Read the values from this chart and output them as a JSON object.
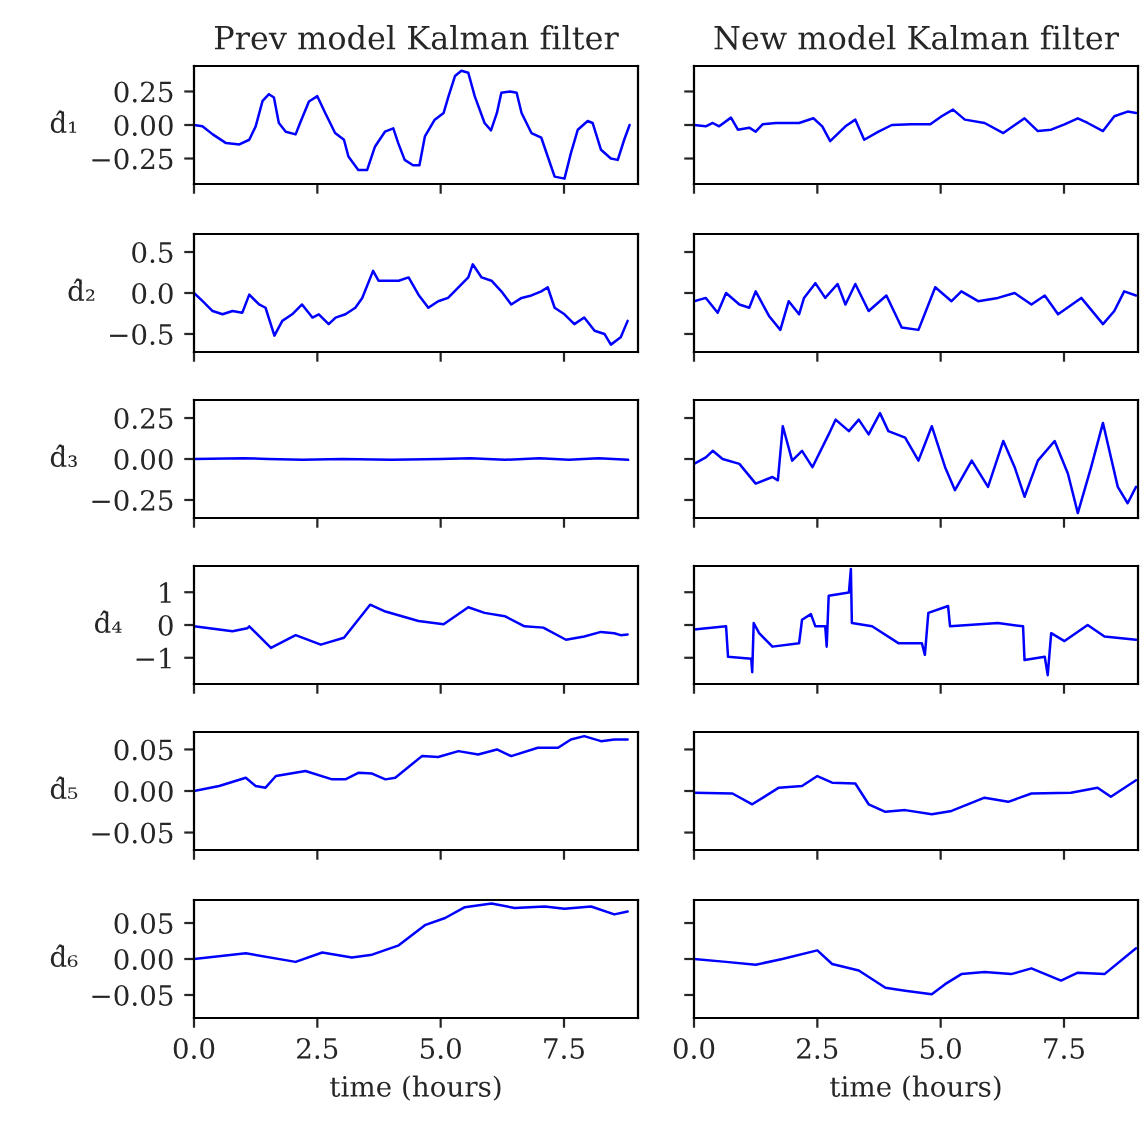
{
  "chart_data": [
    {
      "type": "line",
      "title": "Prev model Kalman filter",
      "ylabel": "d̂₁",
      "xlim": [
        0,
        9
      ],
      "xticks": [
        {
          "value": 0,
          "label": null
        },
        {
          "value": 2.5,
          "label": null
        },
        {
          "value": 5,
          "label": null
        },
        {
          "value": 7.5,
          "label": null
        }
      ],
      "ylim": [
        -0.44,
        0.44
      ],
      "yticks": [
        {
          "value": -0.25,
          "label": "−0.25"
        },
        {
          "value": 0,
          "label": "0.00"
        },
        {
          "value": 0.25,
          "label": "0.25"
        }
      ],
      "tick_labels": "y",
      "series": [
        {
          "color": "#0000ff",
          "x": [
            0,
            0.17,
            0.38,
            0.65,
            0.92,
            1.12,
            1.25,
            1.39,
            1.52,
            1.62,
            1.72,
            1.86,
            2.06,
            2.15,
            2.33,
            2.5,
            2.66,
            2.86,
            3.04,
            3.13,
            3.33,
            3.51,
            3.67,
            3.87,
            4.04,
            4.14,
            4.27,
            4.44,
            4.57,
            4.68,
            4.88,
            5.06,
            5.16,
            5.29,
            5.42,
            5.56,
            5.69,
            5.89,
            6.02,
            6.14,
            6.23,
            6.41,
            6.54,
            6.64,
            6.84,
            7.04,
            7.17,
            7.31,
            7.51,
            7.64,
            7.78,
            7.98,
            8.08,
            8.25,
            8.45,
            8.59,
            8.72,
            8.83
          ],
          "values": [
            0,
            -0.01,
            -0.07,
            -0.135,
            -0.145,
            -0.11,
            -0.01,
            0.18,
            0.23,
            0.205,
            0.015,
            -0.05,
            -0.07,
            0.015,
            0.175,
            0.215,
            0.09,
            -0.06,
            -0.11,
            -0.235,
            -0.335,
            -0.335,
            -0.16,
            -0.05,
            -0.025,
            -0.135,
            -0.26,
            -0.3,
            -0.3,
            -0.085,
            0.04,
            0.09,
            0.215,
            0.365,
            0.405,
            0.39,
            0.215,
            0.015,
            -0.04,
            0.09,
            0.24,
            0.25,
            0.24,
            0.09,
            -0.06,
            -0.095,
            -0.235,
            -0.385,
            -0.4,
            -0.21,
            -0.035,
            0.03,
            0.015,
            -0.185,
            -0.25,
            -0.26,
            -0.11,
            0
          ]
        }
      ]
    },
    {
      "type": "line",
      "title": "New model Kalman filter",
      "xlim": [
        0,
        9
      ],
      "xticks": [
        {
          "value": 0,
          "label": null
        },
        {
          "value": 2.5,
          "label": null
        },
        {
          "value": 5,
          "label": null
        },
        {
          "value": 7.5,
          "label": null
        }
      ],
      "ylim": [
        -0.44,
        0.44
      ],
      "yticks": [
        {
          "value": -0.25,
          "label": null
        },
        {
          "value": 0,
          "label": null
        },
        {
          "value": 0.25,
          "label": null
        }
      ],
      "tick_labels": false,
      "series": [
        {
          "color": "#0000ff",
          "x": [
            0,
            0.24,
            0.38,
            0.51,
            0.75,
            0.89,
            1.12,
            1.25,
            1.39,
            1.66,
            2.13,
            2.42,
            2.6,
            2.76,
            3.07,
            3.27,
            3.45,
            3.74,
            4.01,
            4.41,
            4.79,
            5.02,
            5.25,
            5.49,
            5.89,
            6.27,
            6.7,
            6.97,
            7.24,
            7.51,
            7.78,
            7.98,
            8.29,
            8.52,
            8.79,
            8.96
          ],
          "values": [
            0,
            -0.01,
            0.015,
            -0.01,
            0.055,
            -0.035,
            -0.02,
            -0.05,
            0.005,
            0.015,
            0.015,
            0.05,
            -0.01,
            -0.12,
            -0.01,
            0.04,
            -0.11,
            -0.05,
            0,
            0.005,
            0.005,
            0.065,
            0.115,
            0.04,
            0.015,
            -0.06,
            0.05,
            -0.045,
            -0.035,
            0.005,
            0.05,
            0.015,
            -0.045,
            0.065,
            0.1,
            0.09
          ]
        }
      ]
    },
    {
      "type": "line",
      "ylabel": "d̂₂",
      "xlim": [
        0,
        9
      ],
      "xticks": [
        {
          "value": 0,
          "label": null
        },
        {
          "value": 2.5,
          "label": null
        },
        {
          "value": 5,
          "label": null
        },
        {
          "value": 7.5,
          "label": null
        }
      ],
      "ylim": [
        -0.72,
        0.72
      ],
      "yticks": [
        {
          "value": -0.5,
          "label": "−0.5"
        },
        {
          "value": 0,
          "label": "0.0"
        },
        {
          "value": 0.5,
          "label": "0.5"
        }
      ],
      "tick_labels": "y",
      "series": [
        {
          "color": "#0000ff",
          "x": [
            0,
            0.175,
            0.377,
            0.579,
            0.78,
            0.98,
            1.12,
            1.32,
            1.45,
            1.63,
            1.79,
            1.99,
            2.19,
            2.4,
            2.53,
            2.73,
            2.87,
            3.07,
            3.27,
            3.41,
            3.63,
            3.74,
            3.94,
            4.15,
            4.35,
            4.55,
            4.75,
            4.95,
            5.15,
            5.36,
            5.56,
            5.65,
            5.83,
            6.03,
            6.23,
            6.43,
            6.64,
            6.84,
            7.04,
            7.17,
            7.31,
            7.51,
            7.71,
            7.91,
            8.12,
            8.32,
            8.45,
            8.65,
            8.79
          ],
          "values": [
            0,
            -0.1,
            -0.22,
            -0.26,
            -0.22,
            -0.24,
            -0.02,
            -0.14,
            -0.18,
            -0.52,
            -0.34,
            -0.26,
            -0.14,
            -0.3,
            -0.26,
            -0.38,
            -0.3,
            -0.26,
            -0.18,
            -0.06,
            0.27,
            0.15,
            0.15,
            0.15,
            0.19,
            -0.02,
            -0.18,
            -0.1,
            -0.06,
            0.07,
            0.19,
            0.35,
            0.19,
            0.15,
            0.02,
            -0.14,
            -0.06,
            -0.03,
            0.02,
            0.07,
            -0.18,
            -0.26,
            -0.38,
            -0.3,
            -0.46,
            -0.5,
            -0.63,
            -0.54,
            -0.34
          ]
        }
      ]
    },
    {
      "type": "line",
      "xlim": [
        0,
        9
      ],
      "xticks": [
        {
          "value": 0,
          "label": null
        },
        {
          "value": 2.5,
          "label": null
        },
        {
          "value": 5,
          "label": null
        },
        {
          "value": 7.5,
          "label": null
        }
      ],
      "ylim": [
        -0.72,
        0.72
      ],
      "yticks": [
        {
          "value": -0.5,
          "label": null
        },
        {
          "value": 0,
          "label": null
        },
        {
          "value": 0.5,
          "label": null
        }
      ],
      "tick_labels": false,
      "series": [
        {
          "color": "#0000ff",
          "x": [
            0,
            0.24,
            0.48,
            0.65,
            0.92,
            1.12,
            1.25,
            1.52,
            1.75,
            1.92,
            2.13,
            2.23,
            2.46,
            2.66,
            2.91,
            3.07,
            3.27,
            3.54,
            3.9,
            4.21,
            4.55,
            4.89,
            5.22,
            5.42,
            5.76,
            6.16,
            6.5,
            6.84,
            7.11,
            7.38,
            7.85,
            8.29,
            8.52,
            8.72,
            8.96
          ],
          "values": [
            -0.1,
            -0.06,
            -0.24,
            0,
            -0.14,
            -0.18,
            0.02,
            -0.28,
            -0.45,
            -0.1,
            -0.26,
            -0.06,
            0.12,
            -0.06,
            0.11,
            -0.14,
            0.11,
            -0.22,
            -0.03,
            -0.42,
            -0.45,
            0.07,
            -0.1,
            0.02,
            -0.1,
            -0.06,
            0,
            -0.14,
            -0.03,
            -0.26,
            -0.06,
            -0.38,
            -0.22,
            0.02,
            -0.03
          ]
        }
      ]
    },
    {
      "type": "line",
      "ylabel": "d̂₃",
      "xlim": [
        0,
        9
      ],
      "xticks": [
        {
          "value": 0,
          "label": null
        },
        {
          "value": 2.5,
          "label": null
        },
        {
          "value": 5,
          "label": null
        },
        {
          "value": 7.5,
          "label": null
        }
      ],
      "ylim": [
        -0.36,
        0.36
      ],
      "yticks": [
        {
          "value": -0.25,
          "label": "−0.25"
        },
        {
          "value": 0,
          "label": "0.00"
        },
        {
          "value": 0.25,
          "label": "0.25"
        }
      ],
      "tick_labels": "y",
      "series": [
        {
          "color": "#0000ff",
          "x": [
            0,
            1,
            1.5,
            2.2,
            3,
            4,
            5,
            5.6,
            6.3,
            7,
            7.6,
            8.2,
            8.8
          ],
          "values": [
            0,
            0.005,
            0,
            -0.005,
            0,
            -0.005,
            0,
            0.005,
            -0.005,
            0.005,
            -0.005,
            0.005,
            -0.005
          ]
        }
      ]
    },
    {
      "type": "line",
      "xlim": [
        0,
        9
      ],
      "xticks": [
        {
          "value": 0,
          "label": null
        },
        {
          "value": 2.5,
          "label": null
        },
        {
          "value": 5,
          "label": null
        },
        {
          "value": 7.5,
          "label": null
        }
      ],
      "ylim": [
        -0.36,
        0.36
      ],
      "yticks": [
        {
          "value": -0.25,
          "label": null
        },
        {
          "value": 0,
          "label": null
        },
        {
          "value": 0.25,
          "label": null
        }
      ],
      "tick_labels": false,
      "series": [
        {
          "color": "#0000ff",
          "x": [
            0,
            0.24,
            0.38,
            0.58,
            0.92,
            1.25,
            1.59,
            1.7,
            1.8,
            1.99,
            2.19,
            2.4,
            2.73,
            2.87,
            3.14,
            3.34,
            3.54,
            3.77,
            3.94,
            4.28,
            4.55,
            4.82,
            5.09,
            5.29,
            5.63,
            5.96,
            6.27,
            6.5,
            6.7,
            6.97,
            7.31,
            7.58,
            7.78,
            8.05,
            8.29,
            8.59,
            8.79,
            8.96
          ],
          "values": [
            -0.03,
            0.01,
            0.05,
            0,
            -0.03,
            -0.15,
            -0.11,
            -0.13,
            0.2,
            -0.01,
            0.05,
            -0.05,
            0.15,
            0.24,
            0.17,
            0.24,
            0.15,
            0.28,
            0.17,
            0.13,
            -0.01,
            0.2,
            -0.05,
            -0.19,
            -0.01,
            -0.17,
            0.11,
            -0.05,
            -0.23,
            -0.01,
            0.11,
            -0.09,
            -0.33,
            -0.05,
            0.22,
            -0.17,
            -0.27,
            -0.17
          ]
        }
      ]
    },
    {
      "type": "line",
      "ylabel": "d̂₄",
      "xlim": [
        0,
        9
      ],
      "xticks": [
        {
          "value": 0,
          "label": null
        },
        {
          "value": 2.5,
          "label": null
        },
        {
          "value": 5,
          "label": null
        },
        {
          "value": 7.5,
          "label": null
        }
      ],
      "ylim": [
        -1.8,
        1.8
      ],
      "yticks": [
        {
          "value": -1,
          "label": "−1"
        },
        {
          "value": 0,
          "label": "0"
        },
        {
          "value": 1,
          "label": "1"
        }
      ],
      "tick_labels": "y",
      "series": [
        {
          "color": "#0000ff",
          "x": [
            0,
            0.51,
            0.78,
            1.08,
            1.12,
            1.56,
            2.06,
            2.57,
            3.04,
            3.57,
            3.88,
            4.55,
            5.06,
            5.56,
            5.89,
            6.3,
            6.7,
            7.08,
            7.54,
            7.91,
            8.25,
            8.52,
            8.65,
            8.79
          ],
          "values": [
            -0.04,
            -0.14,
            -0.19,
            -0.1,
            -0.04,
            -0.7,
            -0.31,
            -0.6,
            -0.39,
            0.62,
            0.41,
            0.12,
            0.02,
            0.54,
            0.37,
            0.27,
            -0.04,
            -0.08,
            -0.45,
            -0.35,
            -0.21,
            -0.25,
            -0.31,
            -0.29
          ]
        }
      ]
    },
    {
      "type": "line",
      "xlim": [
        0,
        9
      ],
      "xticks": [
        {
          "value": 0,
          "label": null
        },
        {
          "value": 2.5,
          "label": null
        },
        {
          "value": 5,
          "label": null
        },
        {
          "value": 7.5,
          "label": null
        }
      ],
      "ylim": [
        -1.8,
        1.8
      ],
      "yticks": [
        {
          "value": -1,
          "label": null
        },
        {
          "value": 0,
          "label": null
        },
        {
          "value": 1,
          "label": null
        }
      ],
      "tick_labels": false,
      "series": [
        {
          "color": "#0000ff",
          "x": [
            0,
            0.65,
            0.69,
            1.16,
            1.18,
            1.21,
            1.32,
            1.59,
            2.13,
            2.19,
            2.37,
            2.46,
            2.66,
            2.69,
            2.73,
            3.14,
            3.18,
            3.2,
            3.61,
            4.15,
            4.62,
            4.68,
            4.75,
            5.15,
            5.19,
            6.16,
            6.67,
            6.7,
            7.11,
            7.17,
            7.24,
            7.51,
            7.98,
            8.32,
            8.96
          ],
          "values": [
            -0.14,
            -0.04,
            -0.97,
            -1.03,
            -1.44,
            0.06,
            -0.25,
            -0.66,
            -0.56,
            0.16,
            0.33,
            -0.04,
            -0.04,
            -0.66,
            0.89,
            0.99,
            1.71,
            0.06,
            -0.04,
            -0.56,
            -0.56,
            -0.91,
            0.37,
            0.58,
            -0.04,
            0.06,
            -0.04,
            -1.07,
            -0.97,
            -1.53,
            -0.25,
            -0.49,
            0,
            -0.35,
            -0.45
          ]
        }
      ]
    },
    {
      "type": "line",
      "ylabel": "d̂₅",
      "xlim": [
        0,
        9
      ],
      "xticks": [
        {
          "value": 0,
          "label": null
        },
        {
          "value": 2.5,
          "label": null
        },
        {
          "value": 5,
          "label": null
        },
        {
          "value": 7.5,
          "label": null
        }
      ],
      "ylim": [
        -0.071,
        0.071
      ],
      "yticks": [
        {
          "value": -0.05,
          "label": "−0.05"
        },
        {
          "value": 0,
          "label": "0.00"
        },
        {
          "value": 0.05,
          "label": "0.05"
        }
      ],
      "tick_labels": "y",
      "series": [
        {
          "color": "#0000ff",
          "x": [
            0,
            0.51,
            1.05,
            1.25,
            1.45,
            1.66,
            2.26,
            2.8,
            3.07,
            3.34,
            3.61,
            3.88,
            4.08,
            4.62,
            4.95,
            5.36,
            5.76,
            6.14,
            6.43,
            6.97,
            7.38,
            7.64,
            7.91,
            8.25,
            8.52,
            8.79
          ],
          "values": [
            0,
            0.006,
            0.016,
            0.006,
            0.004,
            0.018,
            0.024,
            0.014,
            0.014,
            0.022,
            0.021,
            0.014,
            0.016,
            0.042,
            0.041,
            0.048,
            0.044,
            0.05,
            0.042,
            0.052,
            0.052,
            0.062,
            0.066,
            0.06,
            0.062,
            0.062
          ]
        }
      ]
    },
    {
      "type": "line",
      "xlim": [
        0,
        9
      ],
      "xticks": [
        {
          "value": 0,
          "label": null
        },
        {
          "value": 2.5,
          "label": null
        },
        {
          "value": 5,
          "label": null
        },
        {
          "value": 7.5,
          "label": null
        }
      ],
      "ylim": [
        -0.071,
        0.071
      ],
      "yticks": [
        {
          "value": -0.05,
          "label": null
        },
        {
          "value": 0,
          "label": null
        },
        {
          "value": 0.05,
          "label": null
        }
      ],
      "tick_labels": false,
      "series": [
        {
          "color": "#0000ff",
          "x": [
            0,
            0.78,
            1.18,
            1.72,
            2.19,
            2.5,
            2.8,
            3.27,
            3.54,
            3.88,
            4.28,
            4.82,
            5.22,
            5.89,
            6.37,
            6.84,
            7.64,
            8.18,
            8.45,
            8.96
          ],
          "values": [
            -0.002,
            -0.003,
            -0.016,
            0.004,
            0.006,
            0.018,
            0.01,
            0.009,
            -0.016,
            -0.025,
            -0.023,
            -0.028,
            -0.024,
            -0.008,
            -0.013,
            -0.003,
            -0.002,
            0.004,
            -0.007,
            0.013
          ]
        }
      ]
    },
    {
      "type": "line",
      "ylabel": "d̂₆",
      "xlabel": "time (hours)",
      "xlim": [
        0,
        9
      ],
      "xticks": [
        {
          "value": 0,
          "label": "0.0"
        },
        {
          "value": 2.5,
          "label": "2.5"
        },
        {
          "value": 5,
          "label": "5.0"
        },
        {
          "value": 7.5,
          "label": "7.5"
        }
      ],
      "ylim": [
        -0.082,
        0.082
      ],
      "yticks": [
        {
          "value": -0.05,
          "label": "−0.05"
        },
        {
          "value": 0,
          "label": "0.00"
        },
        {
          "value": 0.05,
          "label": "0.05"
        }
      ],
      "series": [
        {
          "color": "#0000ff",
          "x": [
            0,
            1.05,
            2.06,
            2.6,
            3.2,
            3.61,
            4.15,
            4.68,
            5.09,
            5.49,
            6.03,
            6.5,
            7.11,
            7.51,
            8.05,
            8.52,
            8.79
          ],
          "values": [
            0,
            0.008,
            -0.004,
            0.009,
            0.002,
            0.006,
            0.019,
            0.047,
            0.057,
            0.072,
            0.077,
            0.071,
            0.073,
            0.07,
            0.073,
            0.062,
            0.066
          ]
        }
      ]
    },
    {
      "type": "line",
      "xlabel": "time (hours)",
      "xlim": [
        0,
        9
      ],
      "xticks": [
        {
          "value": 0,
          "label": "0.0"
        },
        {
          "value": 2.5,
          "label": "2.5"
        },
        {
          "value": 5,
          "label": "5.0"
        },
        {
          "value": 7.5,
          "label": "7.5"
        }
      ],
      "ylim": [
        -0.082,
        0.082
      ],
      "yticks": [
        {
          "value": -0.05,
          "label": null
        },
        {
          "value": 0,
          "label": null
        },
        {
          "value": 0.05,
          "label": null
        }
      ],
      "tick_labels": "x",
      "series": [
        {
          "color": "#0000ff",
          "x": [
            0,
            0.65,
            1.25,
            1.79,
            2.5,
            2.8,
            3.34,
            3.88,
            4.28,
            4.82,
            5.09,
            5.42,
            5.89,
            6.43,
            6.84,
            7.44,
            7.78,
            8.32,
            8.96
          ],
          "values": [
            0,
            -0.004,
            -0.008,
            0,
            0.012,
            -0.007,
            -0.016,
            -0.04,
            -0.044,
            -0.049,
            -0.035,
            -0.021,
            -0.018,
            -0.021,
            -0.013,
            -0.03,
            -0.019,
            -0.021,
            0.015
          ]
        }
      ]
    }
  ]
}
